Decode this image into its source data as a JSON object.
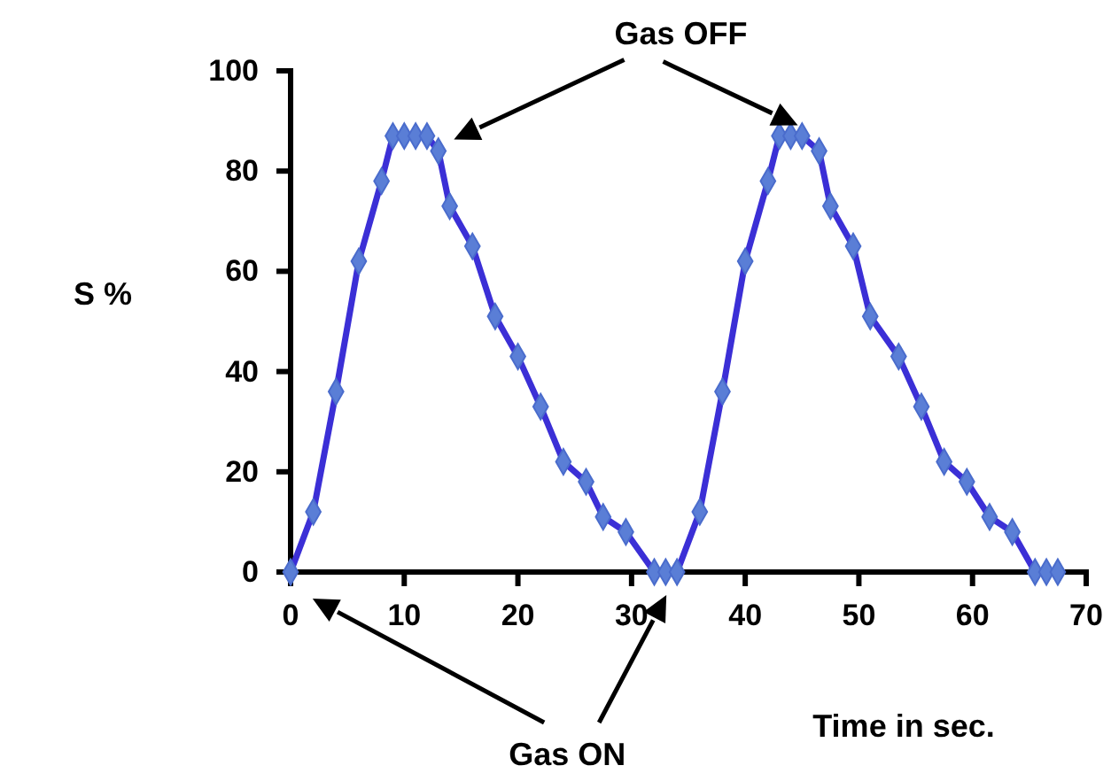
{
  "chart_data": {
    "type": "line",
    "xlabel": "Time in sec.",
    "ylabel": "S %",
    "xlim": [
      0,
      70
    ],
    "ylim": [
      0,
      100
    ],
    "xticks": [
      0,
      10,
      20,
      30,
      40,
      50,
      60,
      70
    ],
    "yticks": [
      0,
      20,
      40,
      60,
      80,
      100
    ],
    "grid": false,
    "marker": "diamond",
    "line_style": "solid",
    "annotations": [
      "Gas OFF",
      "Gas ON"
    ],
    "series": [
      {
        "color": "#3b2fd6",
        "x": [
          0,
          2,
          4,
          6,
          8,
          9,
          10,
          11,
          12,
          13,
          14,
          16,
          18,
          20,
          22,
          24,
          26,
          27.5,
          29.5,
          32,
          33,
          34,
          36,
          38,
          40,
          42,
          43,
          44,
          45,
          46.5,
          47.5,
          49.5,
          51,
          53.5,
          55.5,
          57.5,
          59.5,
          61.5,
          63.5,
          65.5,
          66.5,
          67.5
        ],
        "values": [
          0,
          12,
          36,
          62,
          78,
          87,
          87,
          87,
          87,
          84,
          73,
          65,
          51,
          43,
          33,
          22,
          18,
          11,
          8,
          0,
          0,
          0,
          12,
          36,
          62,
          78,
          87,
          87,
          87,
          84,
          73,
          65,
          51,
          43,
          33,
          22,
          18,
          11,
          8,
          0,
          0,
          0
        ]
      }
    ]
  }
}
